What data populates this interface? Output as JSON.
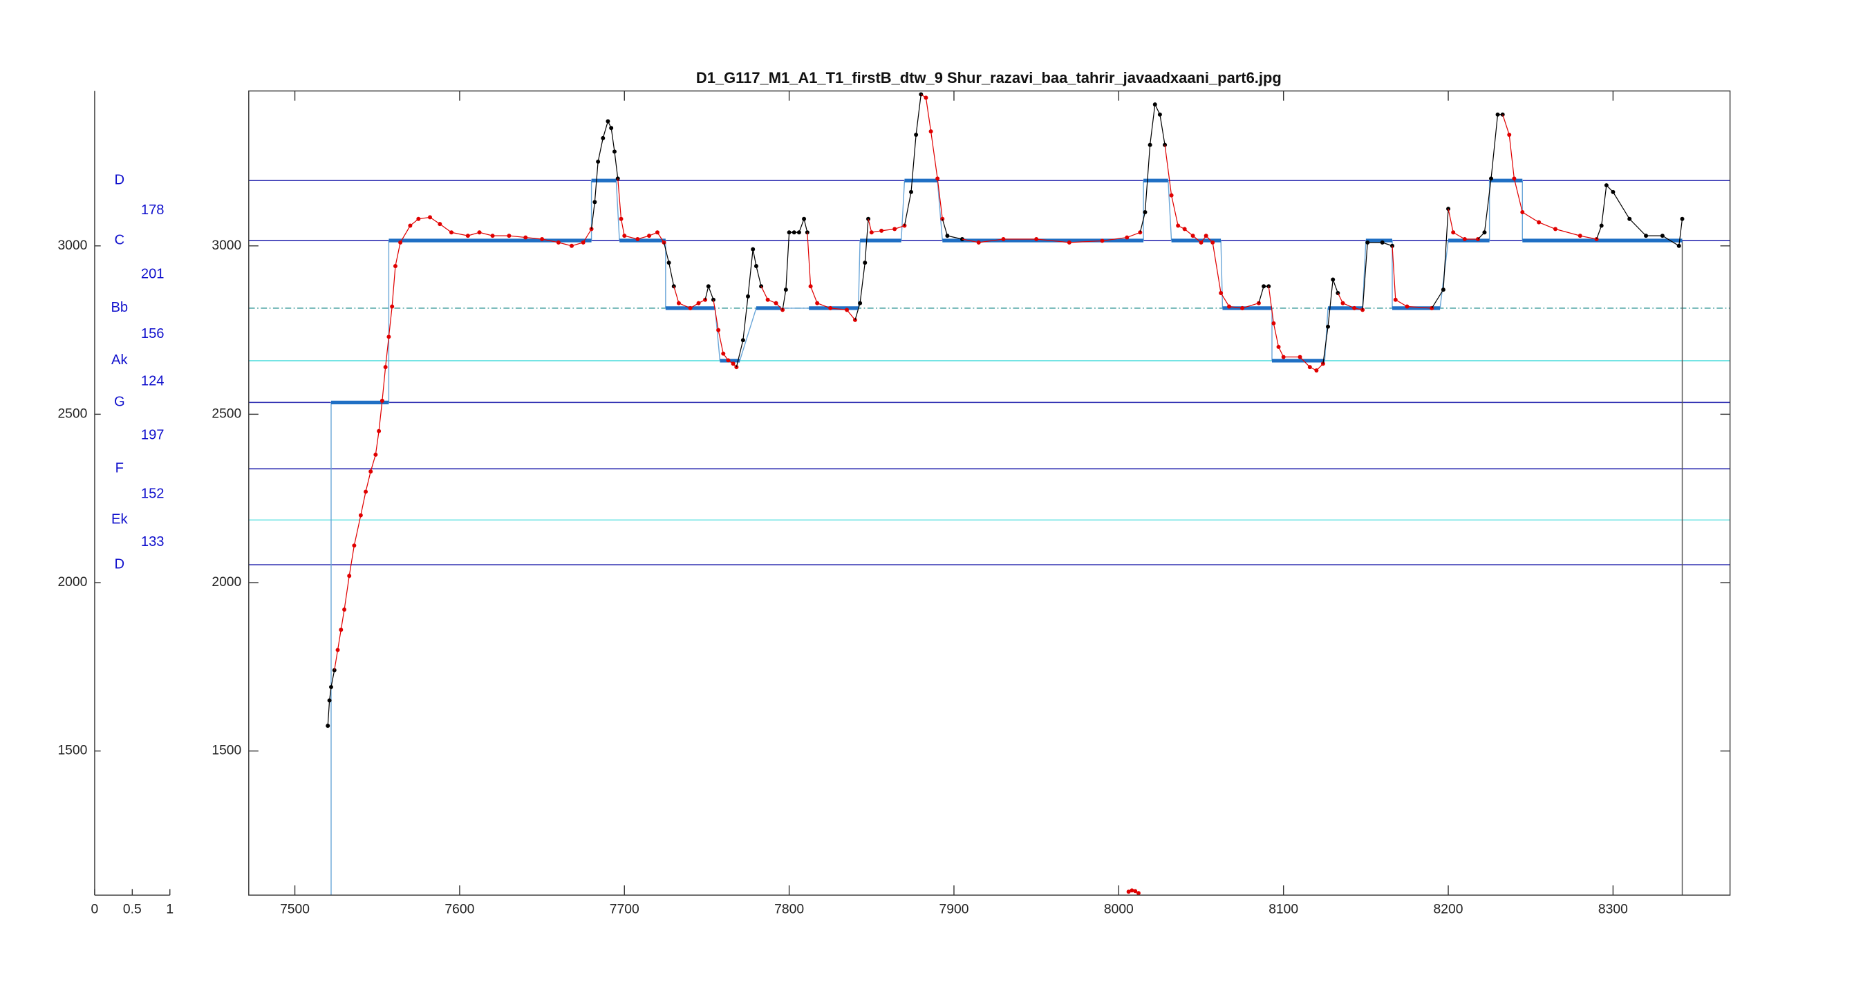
{
  "chart_data": {
    "type": "scatter",
    "title": "D1_G117_M1_A1_T1_firstB_dtw_9 Shur_razavi_baa_tahrir_javaadxaani_part6.jpg",
    "xlim": [
      7472,
      8371
    ],
    "xticks": [
      7500,
      7600,
      7700,
      7800,
      7900,
      8000,
      8100,
      8200,
      8300
    ],
    "ylim": [
      1072,
      3460
    ],
    "yticks": [
      1500,
      2000,
      2500,
      3000
    ],
    "notes": [
      {
        "name": "D",
        "cents": 3194,
        "color": "#2b2bb0",
        "style": "solid"
      },
      {
        "name": "C",
        "cents": 3016,
        "color": "#2b2bb0",
        "style": "solid"
      },
      {
        "name": "Bb",
        "cents": 2815,
        "color": "#3a9a9a",
        "style": "dashed"
      },
      {
        "name": "Ak",
        "cents": 2659,
        "color": "#5fe0e0",
        "style": "solid"
      },
      {
        "name": "G",
        "cents": 2535,
        "color": "#2b2bb0",
        "style": "solid"
      },
      {
        "name": "F",
        "cents": 2338,
        "color": "#2b2bb0",
        "style": "solid"
      },
      {
        "name": "Ek",
        "cents": 2186,
        "color": "#5fe0e0",
        "style": "solid"
      },
      {
        "name": "D",
        "cents": 2053,
        "color": "#2b2bb0",
        "style": "solid"
      }
    ],
    "intervals": [
      178,
      201,
      156,
      124,
      197,
      152,
      133
    ],
    "note_axis": {
      "xlim": [
        0,
        1
      ],
      "xticks": [
        0,
        0.5,
        1
      ],
      "ylim": [
        1072,
        3460
      ],
      "yticks": [
        1500,
        2000,
        2500,
        3000
      ]
    },
    "note_segments": {
      "color": "#1f6fc4",
      "step_color": "#6aa6d8",
      "x_start": [
        7522,
        7557,
        7680,
        7697,
        7725,
        7758,
        7780,
        7812,
        7843,
        7870,
        7893,
        8015,
        8032,
        8063,
        8093,
        8127,
        8150,
        8166,
        8200,
        8225,
        8245
      ],
      "x_end": [
        7557,
        7680,
        7695,
        7725,
        7755,
        7770,
        7795,
        7842,
        7868,
        7890,
        8015,
        8030,
        8062,
        8093,
        8125,
        8148,
        8166,
        8195,
        8225,
        8245,
        8342
      ],
      "values": [
        2535,
        3016,
        3194,
        3016,
        2815,
        2659,
        2815,
        2815,
        3016,
        3194,
        3016,
        3194,
        3016,
        2815,
        2659,
        2815,
        3016,
        2815,
        3016,
        3194,
        3016
      ]
    },
    "series": [
      {
        "color": "#000000",
        "x": [
          7520,
          7521,
          7522,
          7524
        ],
        "y": [
          1575,
          1650,
          1690,
          1740
        ]
      },
      {
        "color": "#e00000",
        "x": [
          7526,
          7528,
          7530,
          7533,
          7536,
          7540,
          7543,
          7546,
          7549,
          7551,
          7553,
          7555,
          7557,
          7559,
          7561,
          7564,
          7570,
          7575,
          7582,
          7588,
          7595,
          7605,
          7612,
          7620,
          7630,
          7640,
          7650,
          7660,
          7668,
          7675,
          7680
        ],
        "y": [
          1800,
          1860,
          1920,
          2020,
          2110,
          2200,
          2270,
          2330,
          2380,
          2450,
          2540,
          2640,
          2730,
          2820,
          2940,
          3010,
          3060,
          3080,
          3085,
          3065,
          3040,
          3030,
          3040,
          3030,
          3030,
          3025,
          3020,
          3010,
          3000,
          3010,
          3050
        ]
      },
      {
        "color": "#000000",
        "x": [
          7682,
          7684,
          7687,
          7690,
          7692,
          7694,
          7696
        ],
        "y": [
          3130,
          3250,
          3320,
          3370,
          3350,
          3280,
          3200
        ]
      },
      {
        "color": "#e00000",
        "x": [
          7698,
          7700,
          7708,
          7715,
          7720,
          7724
        ],
        "y": [
          3080,
          3030,
          3020,
          3030,
          3040,
          3010
        ]
      },
      {
        "color": "#000000",
        "x": [
          7727,
          7730
        ],
        "y": [
          2950,
          2880
        ]
      },
      {
        "color": "#e00000",
        "x": [
          7733,
          7740,
          7745,
          7749
        ],
        "y": [
          2830,
          2815,
          2830,
          2840
        ]
      },
      {
        "color": "#000000",
        "x": [
          7751,
          7754
        ],
        "y": [
          2880,
          2840
        ]
      },
      {
        "color": "#e00000",
        "x": [
          7757,
          7760,
          7763,
          7766,
          7768
        ],
        "y": [
          2750,
          2680,
          2660,
          2650,
          2640
        ]
      },
      {
        "color": "#000000",
        "x": [
          7772,
          7775,
          7778,
          7780,
          7783
        ],
        "y": [
          2720,
          2850,
          2990,
          2940,
          2880
        ]
      },
      {
        "color": "#e00000",
        "x": [
          7787,
          7792,
          7796
        ],
        "y": [
          2840,
          2830,
          2810
        ]
      },
      {
        "color": "#000000",
        "x": [
          7798,
          7800,
          7803,
          7806,
          7809,
          7811
        ],
        "y": [
          2870,
          3040,
          3040,
          3040,
          3080,
          3040
        ]
      },
      {
        "color": "#e00000",
        "x": [
          7813,
          7817,
          7825,
          7835,
          7840
        ],
        "y": [
          2880,
          2830,
          2815,
          2810,
          2780
        ]
      },
      {
        "color": "#000000",
        "x": [
          7843,
          7846,
          7848
        ],
        "y": [
          2830,
          2950,
          3080
        ]
      },
      {
        "color": "#e00000",
        "x": [
          7850,
          7856,
          7864,
          7870
        ],
        "y": [
          3040,
          3045,
          3050,
          3060
        ]
      },
      {
        "color": "#000000",
        "x": [
          7874,
          7877,
          7880
        ],
        "y": [
          3160,
          3330,
          3450
        ]
      },
      {
        "color": "#e00000",
        "x": [
          7883,
          7886,
          7890,
          7893
        ],
        "y": [
          3440,
          3340,
          3200,
          3080
        ]
      },
      {
        "color": "#000000",
        "x": [
          7896,
          7905
        ],
        "y": [
          3030,
          3020
        ]
      },
      {
        "color": "#e00000",
        "x": [
          7915,
          7930,
          7950,
          7970,
          7990,
          8005,
          8013
        ],
        "y": [
          3010,
          3020,
          3020,
          3010,
          3015,
          3025,
          3040
        ]
      },
      {
        "color": "#000000",
        "x": [
          8016,
          8019,
          8022,
          8025,
          8028
        ],
        "y": [
          3100,
          3300,
          3420,
          3390,
          3300
        ]
      },
      {
        "color": "#e00000",
        "x": [
          8032,
          8036,
          8040,
          8045,
          8050,
          8053,
          8057,
          8062,
          8067,
          8075,
          8085
        ],
        "y": [
          3150,
          3060,
          3050,
          3030,
          3010,
          3030,
          3010,
          2860,
          2820,
          2815,
          2830
        ]
      },
      {
        "color": "#000000",
        "x": [
          8088,
          8091
        ],
        "y": [
          2880,
          2880
        ]
      },
      {
        "color": "#e00000",
        "x": [
          8094,
          8097,
          8100,
          8110,
          8116,
          8120,
          8124
        ],
        "y": [
          2770,
          2700,
          2670,
          2670,
          2640,
          2630,
          2650
        ]
      },
      {
        "color": "#000000",
        "x": [
          8127,
          8130,
          8133
        ],
        "y": [
          2760,
          2900,
          2860
        ]
      },
      {
        "color": "#e00000",
        "x": [
          8136,
          8143,
          8148
        ],
        "y": [
          2830,
          2815,
          2810
        ]
      },
      {
        "color": "#000000",
        "x": [
          8151,
          8160,
          8166
        ],
        "y": [
          3010,
          3010,
          3000
        ]
      },
      {
        "color": "#e00000",
        "x": [
          8168,
          8175,
          8190
        ],
        "y": [
          2840,
          2820,
          2815
        ]
      },
      {
        "color": "#000000",
        "x": [
          8197,
          8200
        ],
        "y": [
          2870,
          3110
        ]
      },
      {
        "color": "#e00000",
        "x": [
          8203,
          8210,
          8218
        ],
        "y": [
          3040,
          3020,
          3020
        ]
      },
      {
        "color": "#000000",
        "x": [
          8222,
          8226,
          8230,
          8233
        ],
        "y": [
          3040,
          3200,
          3390,
          3390
        ]
      },
      {
        "color": "#e00000",
        "x": [
          8237,
          8240,
          8245,
          8255,
          8265,
          8280,
          8290
        ],
        "y": [
          3330,
          3200,
          3100,
          3070,
          3050,
          3030,
          3020
        ]
      },
      {
        "color": "#000000",
        "x": [
          8293,
          8296,
          8300,
          8310,
          8320,
          8330,
          8340,
          8342
        ],
        "y": [
          3060,
          3180,
          3160,
          3080,
          3030,
          3030,
          3000,
          3080
        ]
      }
    ],
    "outliers": {
      "color": "#e00000",
      "x": [
        8006,
        8008,
        8010,
        8012
      ],
      "y": [
        1082,
        1086,
        1084,
        1078
      ]
    }
  }
}
